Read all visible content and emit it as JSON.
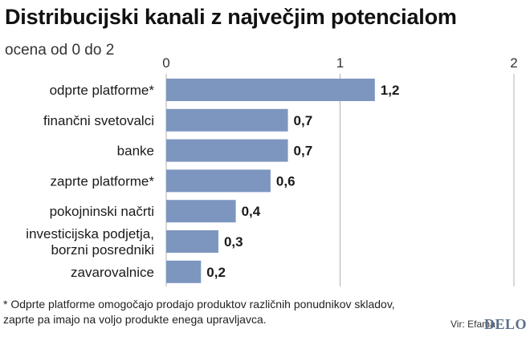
{
  "title": "Distribucijski kanali z največjim potencialom",
  "subtitle": "ocena od 0 do 2",
  "footnote_line1": "* Odprte platforme omogočajo prodajo produktov različnih ponudnikov skladov,",
  "footnote_line2": "zaprte pa imajo na voljo produkte enega upravljavca.",
  "source": "Vir: Efama",
  "logo": "DELO",
  "colors": {
    "bar": "#7d96bf",
    "grid": "#b0b0b0",
    "text": "#1a1a1a"
  },
  "chart_data": {
    "type": "bar",
    "orientation": "horizontal",
    "categories": [
      [
        "odprte platforme*"
      ],
      [
        "finančni svetovalci"
      ],
      [
        "banke"
      ],
      [
        "zaprte platforme*"
      ],
      [
        "pokojninski načrti"
      ],
      [
        "investicijska podjetja,",
        "borzni posredniki"
      ],
      [
        "zavarovalnice"
      ]
    ],
    "values": [
      1.2,
      0.7,
      0.7,
      0.6,
      0.4,
      0.3,
      0.2
    ],
    "value_labels": [
      "1,2",
      "0,7",
      "0,7",
      "0,6",
      "0,4",
      "0,3",
      "0,2"
    ],
    "xlim": [
      0,
      2
    ],
    "ticks": [
      0,
      1,
      2
    ],
    "tick_labels": [
      "0",
      "1",
      "2"
    ],
    "grid": true
  }
}
